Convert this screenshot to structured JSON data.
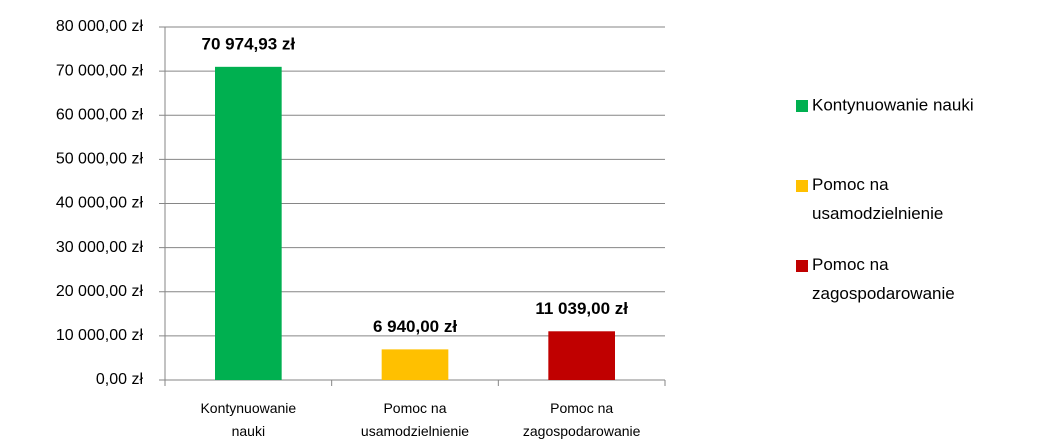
{
  "chart_data": {
    "type": "bar",
    "categories": [
      "Kontynuowanie nauki",
      "Pomoc na usamodzielnienie",
      "Pomoc na zagospodarowanie"
    ],
    "values": [
      70974.93,
      6940,
      11039
    ],
    "value_labels": [
      "70 974,93 zł",
      "6 940,00 zł",
      "11 039,00 zł"
    ],
    "colors": [
      "#00b050",
      "#ffc000",
      "#c00000"
    ],
    "ylim": [
      0,
      80000
    ],
    "yticks": [
      {
        "value": 0,
        "label": "0,00 zł"
      },
      {
        "value": 10000,
        "label": "10 000,00 zł"
      },
      {
        "value": 20000,
        "label": "20 000,00 zł"
      },
      {
        "value": 30000,
        "label": "30 000,00 zł"
      },
      {
        "value": 40000,
        "label": "40 000,00 zł"
      },
      {
        "value": 50000,
        "label": "50 000,00 zł"
      },
      {
        "value": 60000,
        "label": "60 000,00 zł"
      },
      {
        "value": 70000,
        "label": "70 000,00 zł"
      },
      {
        "value": 80000,
        "label": "80 000,00 zł"
      }
    ],
    "grid": true,
    "legend": "right"
  }
}
